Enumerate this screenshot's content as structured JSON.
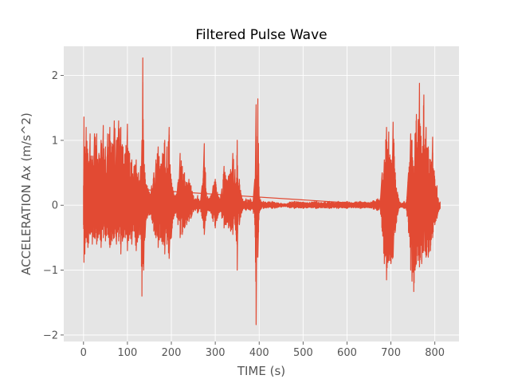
{
  "chart_data": {
    "type": "line",
    "title": "Filtered Pulse Wave",
    "xlabel": "TIME (s)",
    "ylabel": "ACCELERATION Ax (m/s^2)",
    "xlim": [
      -45,
      855
    ],
    "ylim": [
      -2.1,
      2.45
    ],
    "xticks": [
      0,
      100,
      200,
      300,
      400,
      500,
      600,
      700,
      800
    ],
    "yticks": [
      -2,
      -1,
      0,
      1,
      2
    ],
    "grid": true,
    "colors": {
      "line": "#E24A33",
      "plot_background": "#E5E5E5",
      "grid": "#FFFFFF"
    },
    "series": [
      {
        "name": "",
        "envelope": {
          "x": [
            0,
            1,
            3,
            6,
            10,
            15,
            20,
            25,
            30,
            35,
            40,
            45,
            50,
            55,
            60,
            65,
            70,
            75,
            80,
            85,
            90,
            95,
            100,
            105,
            110,
            115,
            120,
            125,
            130,
            133,
            135,
            137,
            140,
            145,
            150,
            155,
            160,
            165,
            170,
            175,
            180,
            185,
            190,
            195,
            200,
            205,
            210,
            215,
            220,
            225,
            230,
            235,
            240,
            245,
            250,
            255,
            260,
            265,
            270,
            275,
            280,
            285,
            290,
            295,
            300,
            305,
            310,
            315,
            320,
            325,
            330,
            335,
            340,
            345,
            348,
            350,
            352,
            355,
            360,
            365,
            370,
            375,
            380,
            385,
            390,
            393,
            395,
            397,
            400,
            405,
            410,
            420,
            430,
            440,
            450,
            460,
            470,
            480,
            490,
            500,
            510,
            520,
            530,
            540,
            550,
            560,
            570,
            580,
            590,
            600,
            610,
            620,
            630,
            640,
            650,
            660,
            670,
            675,
            680,
            685,
            690,
            695,
            700,
            705,
            710,
            715,
            720,
            725,
            730,
            735,
            740,
            745,
            748,
            752,
            755,
            758,
            762,
            765,
            770,
            775,
            780,
            785,
            790,
            795,
            800,
            805,
            808,
            812
          ],
          "upper": [
            0.3,
            1.36,
            0.9,
            1.2,
            0.8,
            1.1,
            0.7,
            1.1,
            1.1,
            0.8,
            1.0,
            1.23,
            0.9,
            1.1,
            1.2,
            0.9,
            1.3,
            1.0,
            1.3,
            1.2,
            0.9,
            0.8,
            1.25,
            0.8,
            0.7,
            0.6,
            0.7,
            0.5,
            0.6,
            1.0,
            2.27,
            1.0,
            0.5,
            0.3,
            0.2,
            0.3,
            0.5,
            0.7,
            0.9,
            0.6,
            0.8,
            1.0,
            0.9,
            1.2,
            0.4,
            0.2,
            0.15,
            0.35,
            0.8,
            0.6,
            0.5,
            0.35,
            0.4,
            0.3,
            0.15,
            0.1,
            0.15,
            0.05,
            0.3,
            0.95,
            0.2,
            0.1,
            0.15,
            0.3,
            0.4,
            0.2,
            0.1,
            0.25,
            0.6,
            0.4,
            0.45,
            0.55,
            0.8,
            0.55,
            0.35,
            1.0,
            0.3,
            0.4,
            0.15,
            0.05,
            0.1,
            0.08,
            0.1,
            0.05,
            0.4,
            1.55,
            0.3,
            1.64,
            0.15,
            0.05,
            0.06,
            0.05,
            0.06,
            0.04,
            0.03,
            0.02,
            0.05,
            0.06,
            0.05,
            0.05,
            0.04,
            0.05,
            0.06,
            0.04,
            0.05,
            0.06,
            0.04,
            0.06,
            0.05,
            0.06,
            0.04,
            0.05,
            0.06,
            0.05,
            0.04,
            0.07,
            0.1,
            0.06,
            0.5,
            0.7,
            1.2,
            1.13,
            0.7,
            1.28,
            0.5,
            0.2,
            0.05,
            0.03,
            0.06,
            0.05,
            0.5,
            1.1,
            1.0,
            0.6,
            1.1,
            1.4,
            1.3,
            1.88,
            0.8,
            1.7,
            1.2,
            0.9,
            0.7,
            1.05,
            0.4,
            0.3,
            0.1,
            0.05
          ],
          "lower": [
            -0.3,
            -0.88,
            -0.75,
            -0.5,
            -0.65,
            -0.45,
            -0.6,
            -0.5,
            -0.6,
            -0.45,
            -0.65,
            -0.5,
            -0.55,
            -0.45,
            -0.65,
            -0.55,
            -0.5,
            -0.6,
            -0.55,
            -0.75,
            -0.5,
            -0.5,
            -0.7,
            -0.45,
            -0.6,
            -0.4,
            -0.7,
            -0.5,
            -0.45,
            -1.4,
            -0.9,
            -1.0,
            -0.5,
            -0.2,
            -0.15,
            -0.2,
            -0.4,
            -0.5,
            -0.65,
            -0.5,
            -0.6,
            -0.75,
            -0.6,
            -0.82,
            -0.5,
            -0.2,
            -0.12,
            -0.3,
            -0.5,
            -0.45,
            -0.35,
            -0.3,
            -0.25,
            -0.2,
            -0.1,
            -0.08,
            -0.12,
            -0.05,
            -0.2,
            -0.45,
            -0.15,
            -0.08,
            -0.12,
            -0.25,
            -0.35,
            -0.2,
            -0.1,
            -0.2,
            -0.35,
            -0.3,
            -0.35,
            -0.4,
            -0.45,
            -0.3,
            -0.55,
            -1.0,
            -0.25,
            -0.3,
            -0.12,
            -0.05,
            -0.08,
            -0.06,
            -0.08,
            -0.05,
            -0.3,
            -1.84,
            -0.5,
            -0.8,
            -0.12,
            -0.05,
            -0.05,
            -0.04,
            -0.05,
            -0.04,
            -0.03,
            -0.02,
            -0.04,
            -0.05,
            -0.04,
            -0.05,
            -0.04,
            -0.04,
            -0.05,
            -0.04,
            -0.04,
            -0.05,
            -0.04,
            -0.05,
            -0.04,
            -0.05,
            -0.04,
            -0.04,
            -0.05,
            -0.04,
            -0.04,
            -0.06,
            -0.08,
            -0.05,
            -0.4,
            -0.9,
            -1.15,
            -0.85,
            -0.9,
            -0.8,
            -0.4,
            -0.15,
            -0.04,
            -0.03,
            -0.05,
            -0.05,
            -0.4,
            -1.0,
            -1.17,
            -1.33,
            -1.0,
            -0.9,
            -0.85,
            -0.95,
            -0.9,
            -0.7,
            -0.8,
            -0.8,
            -0.7,
            -0.5,
            -0.3,
            -0.2,
            -0.1,
            -0.05
          ]
        }
      }
    ]
  }
}
